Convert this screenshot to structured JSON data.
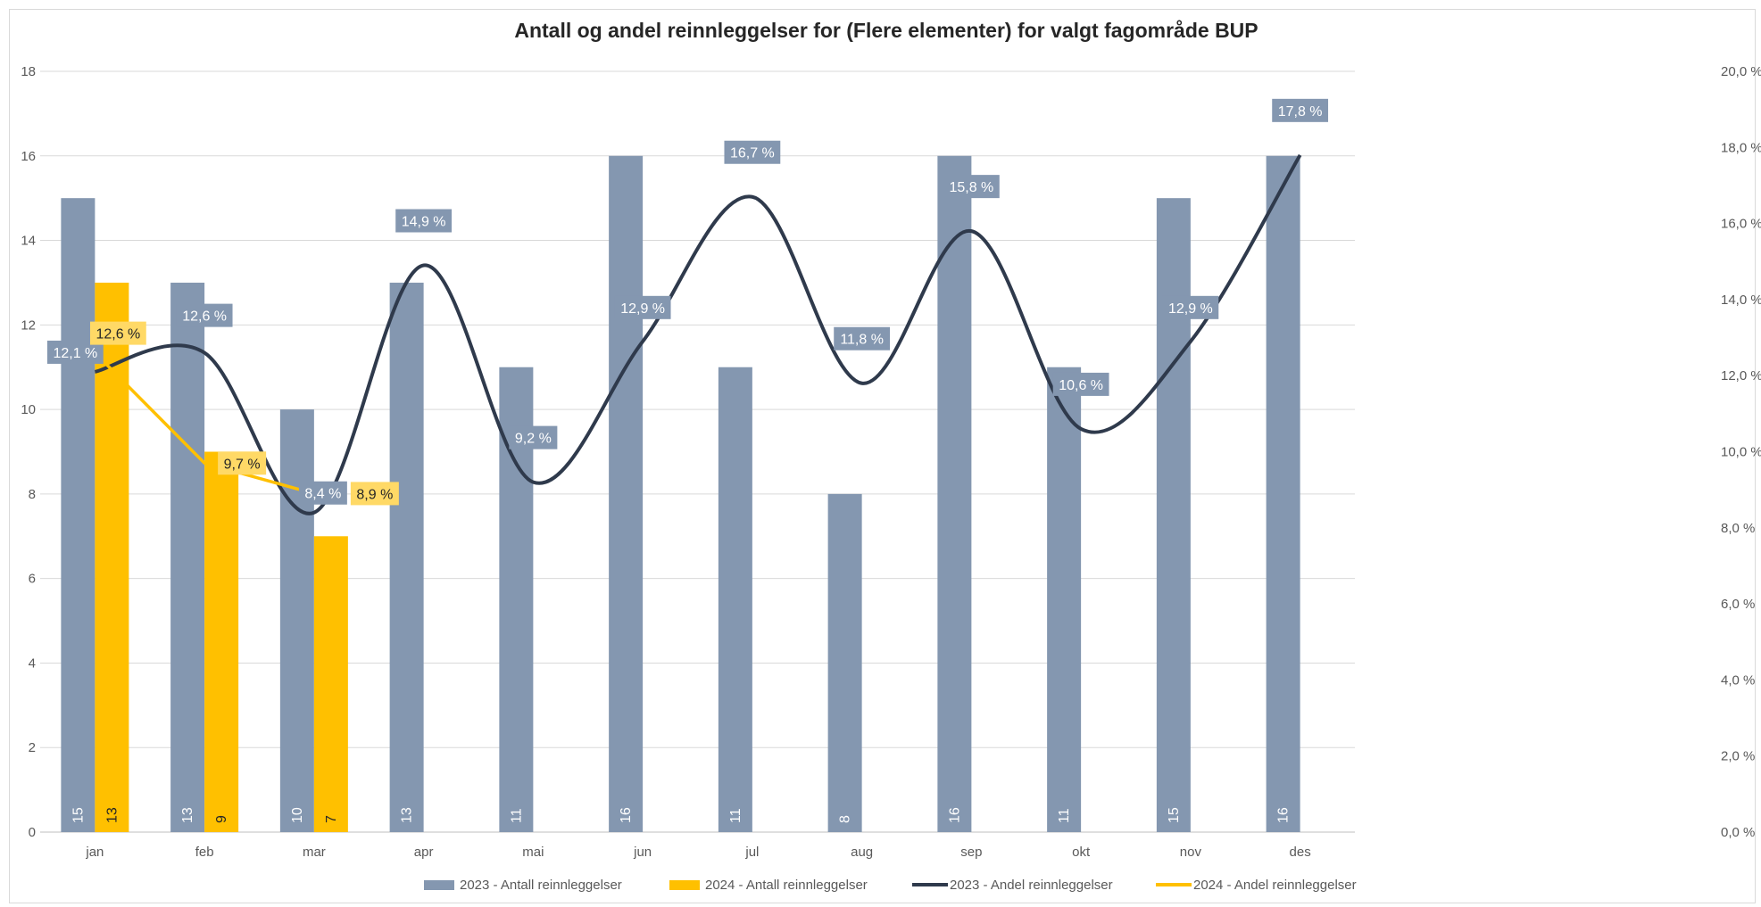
{
  "chart_data": {
    "type": "bar",
    "title": "Antall og andel reinnleggelser for (Flere elementer)  for valgt fagområde BUP",
    "categories": [
      "jan",
      "feb",
      "mar",
      "apr",
      "mai",
      "jun",
      "jul",
      "aug",
      "sep",
      "okt",
      "nov",
      "des"
    ],
    "y_left": {
      "min": 0,
      "max": 18,
      "ticks": [
        "0",
        "2",
        "4",
        "6",
        "8",
        "10",
        "12",
        "14",
        "16",
        "18"
      ]
    },
    "y_right": {
      "min": 0,
      "max": 20,
      "ticks": [
        "0,0 %",
        "2,0 %",
        "4,0 %",
        "6,0 %",
        "8,0 %",
        "10,0 %",
        "12,0 %",
        "14,0 %",
        "16,0 %",
        "18,0 %",
        "20,0 %"
      ]
    },
    "grid": true,
    "legend_position": "bottom",
    "bar_series": [
      {
        "name": "2023 - Antall reinnleggelser",
        "color": "#8497b0",
        "label_color": "#ffffff",
        "values": [
          15,
          13,
          10,
          13,
          11,
          16,
          11,
          8,
          16,
          11,
          15,
          16
        ],
        "labels": [
          "15",
          "13",
          "10",
          "13",
          "11",
          "16",
          "11",
          "8",
          "16",
          "11",
          "15",
          "16"
        ]
      },
      {
        "name": "2024 - Antall reinnleggelser",
        "color": "#ffc000",
        "label_color": "#262626",
        "values": [
          13,
          9,
          7,
          null,
          null,
          null,
          null,
          null,
          null,
          null,
          null,
          null
        ],
        "labels": [
          "13",
          "9",
          "7",
          "",
          "",
          "",
          "",
          "",
          "",
          "",
          "",
          ""
        ]
      }
    ],
    "line_series": [
      {
        "name": "2023 - Andel reinnleggelser",
        "color": "#2f3a4c",
        "smooth": true,
        "label_bg": "#8497b0",
        "label_color": "#ffffff",
        "values": [
          12.1,
          12.6,
          8.4,
          14.9,
          9.2,
          12.9,
          16.7,
          11.8,
          15.8,
          10.6,
          12.9,
          17.8
        ],
        "labels": [
          "12,1 %",
          "12,6 %",
          "8,4 %",
          "14,9 %",
          "9,2 %",
          "12,9 %",
          "16,7 %",
          "11,8 %",
          "15,8 %",
          "10,6 %",
          "12,9 %",
          "17,8 %"
        ]
      },
      {
        "name": "2024 - Andel reinnleggelser",
        "color": "#ffc000",
        "smooth": false,
        "label_bg": "#ffd966",
        "label_color": "#262626",
        "values": [
          12.6,
          9.7,
          8.9,
          null,
          null,
          null,
          null,
          null,
          null,
          null,
          null,
          null
        ],
        "labels": [
          "12,6 %",
          "9,7 %",
          "8,9 %",
          "",
          "",
          "",
          "",
          "",
          "",
          "",
          "",
          ""
        ]
      }
    ]
  }
}
